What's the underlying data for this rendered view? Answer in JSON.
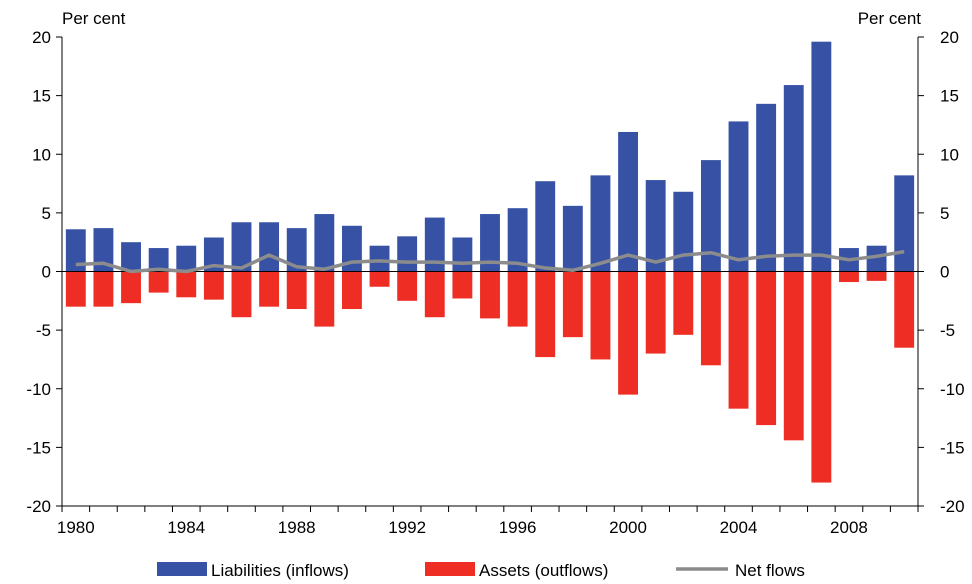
{
  "chart_data": {
    "type": "bar",
    "y_axis_unit_left": "Per cent",
    "y_axis_unit_right": "Per cent",
    "ylim": [
      -20,
      20
    ],
    "yticks": [
      -20,
      -15,
      -10,
      -5,
      0,
      5,
      10,
      15,
      20
    ],
    "xlim": [
      1980,
      2010
    ],
    "xtick_labels": [
      "1980",
      "1984",
      "1988",
      "1992",
      "1996",
      "2000",
      "2004",
      "2008"
    ],
    "x": [
      1980,
      1981,
      1982,
      1983,
      1984,
      1985,
      1986,
      1987,
      1988,
      1989,
      1990,
      1991,
      1992,
      1993,
      1994,
      1995,
      1996,
      1997,
      1998,
      1999,
      2000,
      2001,
      2002,
      2003,
      2004,
      2005,
      2006,
      2007,
      2008,
      2009,
      2010
    ],
    "series": [
      {
        "name": "Liabilities (inflows)",
        "kind": "bar",
        "color": "#3752a5",
        "values": [
          3.6,
          3.7,
          2.5,
          2.0,
          2.2,
          2.9,
          4.2,
          4.2,
          3.7,
          4.9,
          3.9,
          2.2,
          3.0,
          4.6,
          2.9,
          4.9,
          5.4,
          7.7,
          5.6,
          8.2,
          11.9,
          7.8,
          6.8,
          9.5,
          12.8,
          14.3,
          15.9,
          19.6,
          2.0,
          2.2,
          8.2
        ]
      },
      {
        "name": "Assets (outflows)",
        "kind": "bar",
        "color": "#ee2d24",
        "values": [
          -3.0,
          -3.0,
          -2.7,
          -1.8,
          -2.2,
          -2.4,
          -3.9,
          -3.0,
          -3.2,
          -4.7,
          -3.2,
          -1.3,
          -2.5,
          -3.9,
          -2.3,
          -4.0,
          -4.7,
          -7.3,
          -5.6,
          -7.5,
          -10.5,
          -7.0,
          -5.4,
          -8.0,
          -11.7,
          -13.1,
          -14.4,
          -18.0,
          -0.9,
          -0.8,
          -6.5
        ]
      },
      {
        "name": "Net flows",
        "kind": "line",
        "color": "#8c8c8c",
        "values": [
          0.6,
          0.7,
          0.0,
          0.2,
          0.0,
          0.5,
          0.3,
          1.4,
          0.4,
          0.2,
          0.8,
          0.9,
          0.8,
          0.8,
          0.7,
          0.8,
          0.7,
          0.3,
          0.1,
          0.7,
          1.4,
          0.8,
          1.4,
          1.6,
          1.0,
          1.3,
          1.4,
          1.4,
          1.0,
          1.3,
          1.7
        ]
      }
    ],
    "legend_position": "bottom",
    "grid": false
  }
}
